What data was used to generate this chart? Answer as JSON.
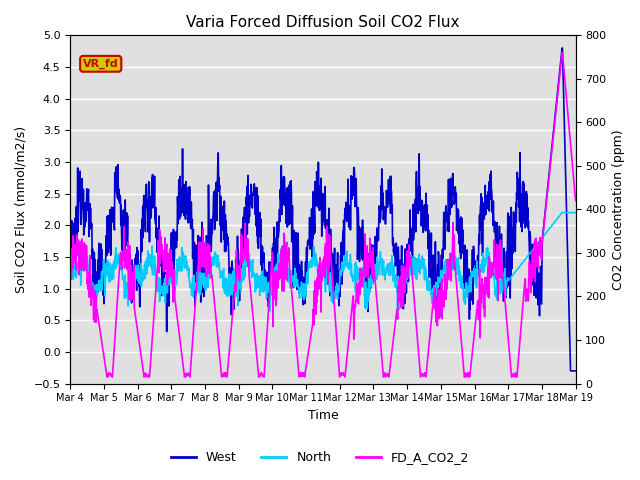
{
  "title": "Varia Forced Diffusion Soil CO2 Flux",
  "xlabel": "Time",
  "ylabel_left": "Soil CO2 Flux (mmol/m2/s)",
  "ylabel_right": "CO2 Concentration (ppm)",
  "ylim_left": [
    -0.5,
    5.0
  ],
  "ylim_right": [
    0,
    800
  ],
  "x_ticks_labels": [
    "Mar 4",
    "Mar 5",
    "Mar 6",
    "Mar 7",
    "Mar 8",
    "Mar 9",
    "Mar 10",
    "Mar 11",
    "Mar 12",
    "Mar 13",
    "Mar 14",
    "Mar 15",
    "Mar 16",
    "Mar 17",
    "Mar 18",
    "Mar 19"
  ],
  "legend_labels": [
    "West",
    "North",
    "FD_A_CO2_2"
  ],
  "annotation_text": "VR_fd",
  "annotation_color": "#cc0000",
  "annotation_bg": "#cccc00",
  "west_color": "#0000cc",
  "north_color": "#00ccff",
  "co2_color": "#ff00ff",
  "bg_color": "#e0e0e0",
  "grid_color": "#ffffff",
  "west_lw": 1.2,
  "north_lw": 1.2,
  "co2_lw": 1.2
}
